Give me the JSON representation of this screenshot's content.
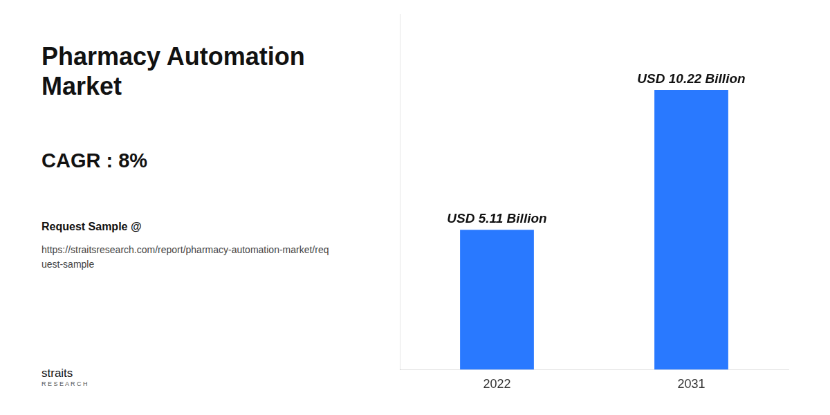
{
  "chart_data": {
    "type": "bar",
    "title": "Pharmacy Automation Market",
    "annotations": [
      "CAGR : 8%",
      "Request Sample @",
      "https://straitsresearch.com/report/pharmacy-automation-market/req\nuest-sample",
      "straits",
      "R E S E A R C H"
    ],
    "categories": [
      "2022",
      "2031"
    ],
    "values": [
      5.11,
      10.22
    ],
    "value_labels": [
      "USD 5.11 Billion",
      "USD 10.22 Billion"
    ],
    "data_labels": true,
    "color": "#2979FF",
    "ylim": [
      0,
      13
    ],
    "tick_labels": "x",
    "grid": false
  }
}
